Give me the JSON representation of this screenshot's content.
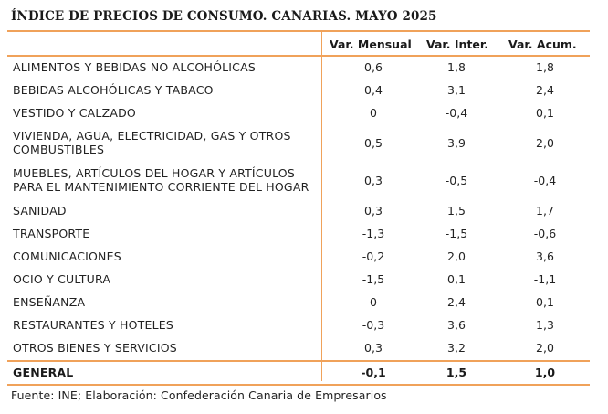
{
  "title": "ÍNDICE DE PRECIOS DE CONSUMO. CANARIAS. MAYO 2025",
  "columns": [
    "Var. Mensual",
    "Var. Inter.",
    "Var. Acum."
  ],
  "rows": [
    {
      "label": "ALIMENTOS Y BEBIDAS NO ALCOHÓLICAS",
      "mensual": "0,6",
      "inter": "1,8",
      "acum": "1,8"
    },
    {
      "label": "BEBIDAS ALCOHÓLICAS Y TABACO",
      "mensual": "0,4",
      "inter": "3,1",
      "acum": "2,4"
    },
    {
      "label": "VESTIDO Y CALZADO",
      "mensual": "0",
      "inter": "-0,4",
      "acum": "0,1"
    },
    {
      "label": "VIVIENDA, AGUA, ELECTRICIDAD, GAS Y OTROS COMBUSTIBLES",
      "mensual": "0,5",
      "inter": "3,9",
      "acum": "2,0"
    },
    {
      "label": "MUEBLES, ARTÍCULOS DEL HOGAR Y ARTÍCULOS PARA EL MANTENIMIENTO CORRIENTE DEL HOGAR",
      "mensual": "0,3",
      "inter": "-0,5",
      "acum": "-0,4"
    },
    {
      "label": "SANIDAD",
      "mensual": "0,3",
      "inter": "1,5",
      "acum": "1,7"
    },
    {
      "label": "TRANSPORTE",
      "mensual": "-1,3",
      "inter": "-1,5",
      "acum": "-0,6"
    },
    {
      "label": "COMUNICACIONES",
      "mensual": "-0,2",
      "inter": "2,0",
      "acum": "3,6"
    },
    {
      "label": "OCIO Y CULTURA",
      "mensual": "-1,5",
      "inter": "0,1",
      "acum": "-1,1"
    },
    {
      "label": "ENSEÑANZA",
      "mensual": "0",
      "inter": "2,4",
      "acum": "0,1"
    },
    {
      "label": "RESTAURANTES Y HOTELES",
      "mensual": "-0,3",
      "inter": "3,6",
      "acum": "1,3"
    },
    {
      "label": "OTROS BIENES Y SERVICIOS",
      "mensual": "0,3",
      "inter": "3,2",
      "acum": "2,0"
    }
  ],
  "total": {
    "label": "GENERAL",
    "mensual": "-0,1",
    "inter": "1,5",
    "acum": "1,0"
  },
  "source": "Fuente: INE; Elaboración: Confederación Canaria de Empresarios",
  "accent_color": "#f0a25a"
}
